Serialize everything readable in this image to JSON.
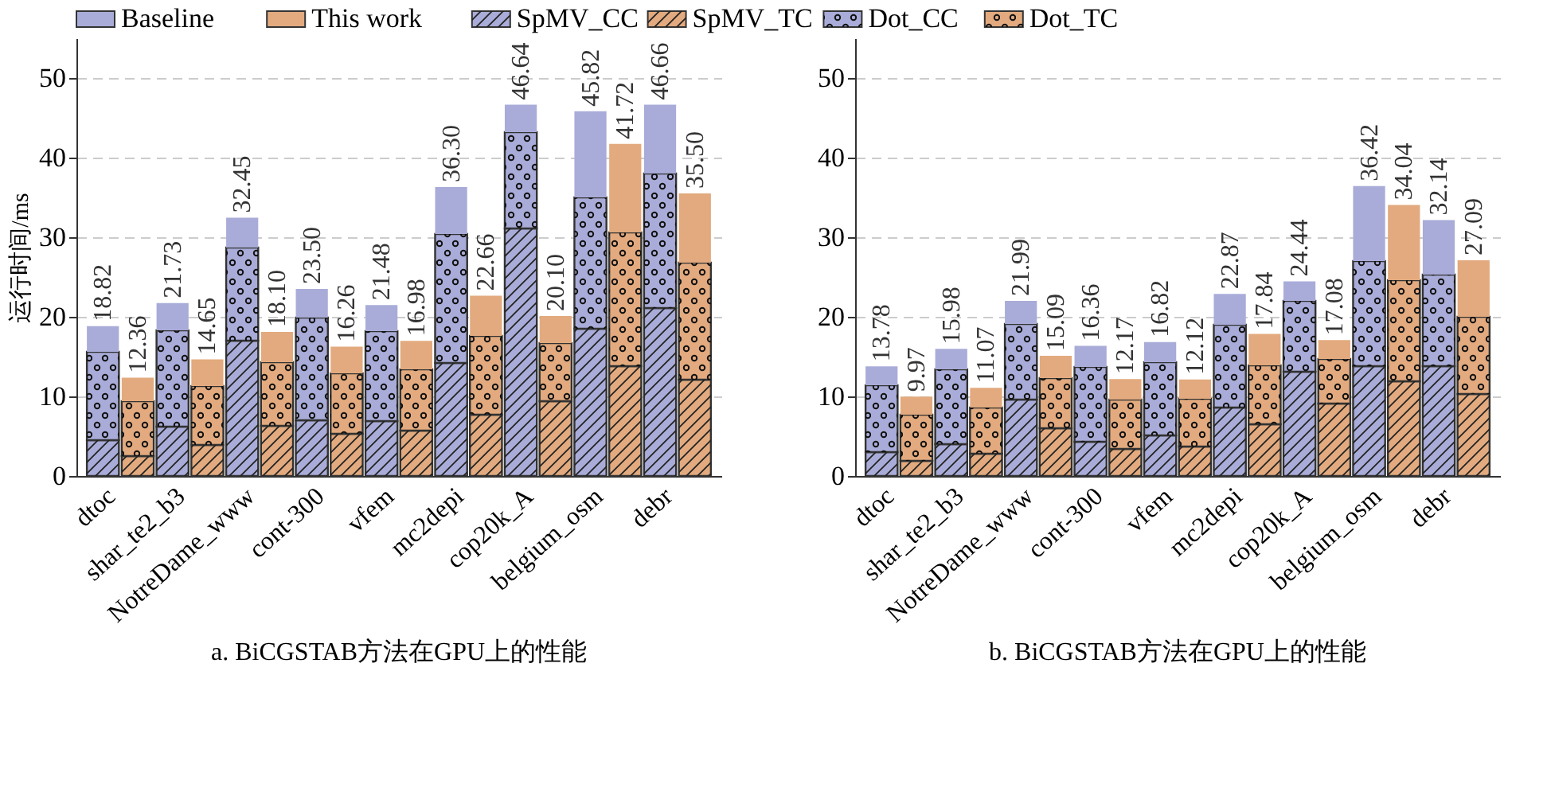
{
  "chart_data": [
    {
      "type": "bar",
      "stacked": true,
      "title": "a. BiCGSTAB方法在GPU上的性能",
      "ylabel": "运行时间/ms",
      "legend": "top",
      "grid": "y",
      "ylim": [
        0,
        55
      ],
      "yticks": [
        0,
        10,
        20,
        30,
        40,
        50
      ],
      "categories": [
        "dtoc",
        null,
        "shar_te2_b3",
        null,
        "NotreDame_www",
        null,
        "cont-300",
        null,
        "vfem",
        null,
        "mc2depi",
        null,
        "cop20k_A",
        null,
        "belgium_osm",
        null,
        "debr",
        null
      ],
      "series": [
        {
          "name": "SpMV_CC",
          "color": "#a9acd8",
          "values": [
            4.5,
            null,
            6.2,
            null,
            17.0,
            null,
            7.0,
            null,
            6.9,
            null,
            14.2,
            null,
            31.1,
            null,
            18.5,
            null,
            21.1,
            null
          ]
        },
        {
          "name": "Dot_CC",
          "color": "#a9acd8",
          "values": [
            11.1,
            null,
            12.1,
            null,
            11.7,
            null,
            12.9,
            null,
            11.3,
            null,
            16.2,
            null,
            12.1,
            null,
            16.5,
            null,
            16.9,
            null
          ]
        },
        {
          "name": "Baseline",
          "color": "#a9acd8",
          "values": [
            3.22,
            null,
            3.43,
            null,
            3.75,
            null,
            3.6,
            null,
            3.28,
            null,
            5.9,
            null,
            3.44,
            null,
            10.82,
            null,
            8.66,
            null
          ]
        },
        {
          "name": "SpMV_TC",
          "color": "#e2aa7e",
          "values": [
            null,
            2.5,
            null,
            3.9,
            null,
            6.3,
            null,
            5.3,
            null,
            5.7,
            null,
            7.7,
            null,
            9.4,
            null,
            13.8,
            null,
            12.1
          ]
        },
        {
          "name": "Dot_TC",
          "color": "#e2aa7e",
          "values": [
            null,
            6.9,
            null,
            7.4,
            null,
            8.0,
            null,
            7.6,
            null,
            7.7,
            null,
            9.9,
            null,
            7.3,
            null,
            16.8,
            null,
            14.7
          ]
        },
        {
          "name": "This work",
          "color": "#e2aa7e",
          "values": [
            null,
            2.96,
            null,
            3.35,
            null,
            3.8,
            null,
            3.36,
            null,
            3.58,
            null,
            5.06,
            null,
            3.4,
            null,
            11.12,
            null,
            8.7
          ]
        }
      ],
      "totals": [
        "18.82",
        "12.36",
        "21.73",
        "14.65",
        "32.45",
        "18.10",
        "23.50",
        "16.26",
        "21.48",
        "16.98",
        "36.30",
        "22.66",
        "46.64",
        "20.10",
        "45.82",
        "41.72",
        "46.66",
        "35.50"
      ]
    },
    {
      "type": "bar",
      "stacked": true,
      "title": "b. BiCGSTAB方法在GPU上的性能",
      "grid": "y",
      "ylim": [
        0,
        55
      ],
      "yticks": [
        0,
        10,
        20,
        30,
        40,
        50
      ],
      "categories": [
        "dtoc",
        null,
        "shar_te2_b3",
        null,
        "NotreDame_www",
        null,
        "cont-300",
        null,
        "vfem",
        null,
        "mc2depi",
        null,
        "cop20k_A",
        null,
        "belgium_osm",
        null,
        "debr",
        null
      ],
      "series": [
        {
          "color": "#a9acd8",
          "values": [
            3.0,
            null,
            4.0,
            null,
            9.6,
            null,
            4.3,
            null,
            5.1,
            null,
            8.6,
            null,
            13.1,
            null,
            13.8,
            null,
            13.8,
            null
          ]
        },
        {
          "color": "#a9acd8",
          "values": [
            8.4,
            null,
            9.4,
            null,
            9.5,
            null,
            9.4,
            null,
            9.2,
            null,
            10.4,
            null,
            8.9,
            null,
            13.2,
            null,
            11.5,
            null
          ]
        },
        {
          "color": "#a9acd8",
          "values": [
            2.38,
            null,
            2.58,
            null,
            2.89,
            null,
            2.66,
            null,
            2.52,
            null,
            3.87,
            null,
            2.44,
            null,
            9.42,
            null,
            6.84,
            null
          ]
        },
        {
          "color": "#e2aa7e",
          "values": [
            null,
            1.9,
            null,
            2.8,
            null,
            6.0,
            null,
            3.4,
            null,
            3.7,
            null,
            6.5,
            null,
            9.1,
            null,
            11.9,
            null,
            10.3
          ]
        },
        {
          "color": "#e2aa7e",
          "values": [
            null,
            5.8,
            null,
            5.8,
            null,
            6.3,
            null,
            6.2,
            null,
            6.0,
            null,
            7.4,
            null,
            5.6,
            null,
            12.7,
            null,
            9.7
          ]
        },
        {
          "color": "#e2aa7e",
          "values": [
            null,
            2.27,
            null,
            2.47,
            null,
            2.79,
            null,
            2.57,
            null,
            2.42,
            null,
            3.94,
            null,
            2.38,
            null,
            9.44,
            null,
            7.09
          ]
        }
      ],
      "totals": [
        "13.78",
        "9.97",
        "15.98",
        "11.07",
        "21.99",
        "15.09",
        "16.36",
        "12.17",
        "16.82",
        "12.12",
        "22.87",
        "17.84",
        "24.44",
        "17.08",
        "36.42",
        "34.04",
        "32.14",
        "27.09"
      ]
    }
  ]
}
